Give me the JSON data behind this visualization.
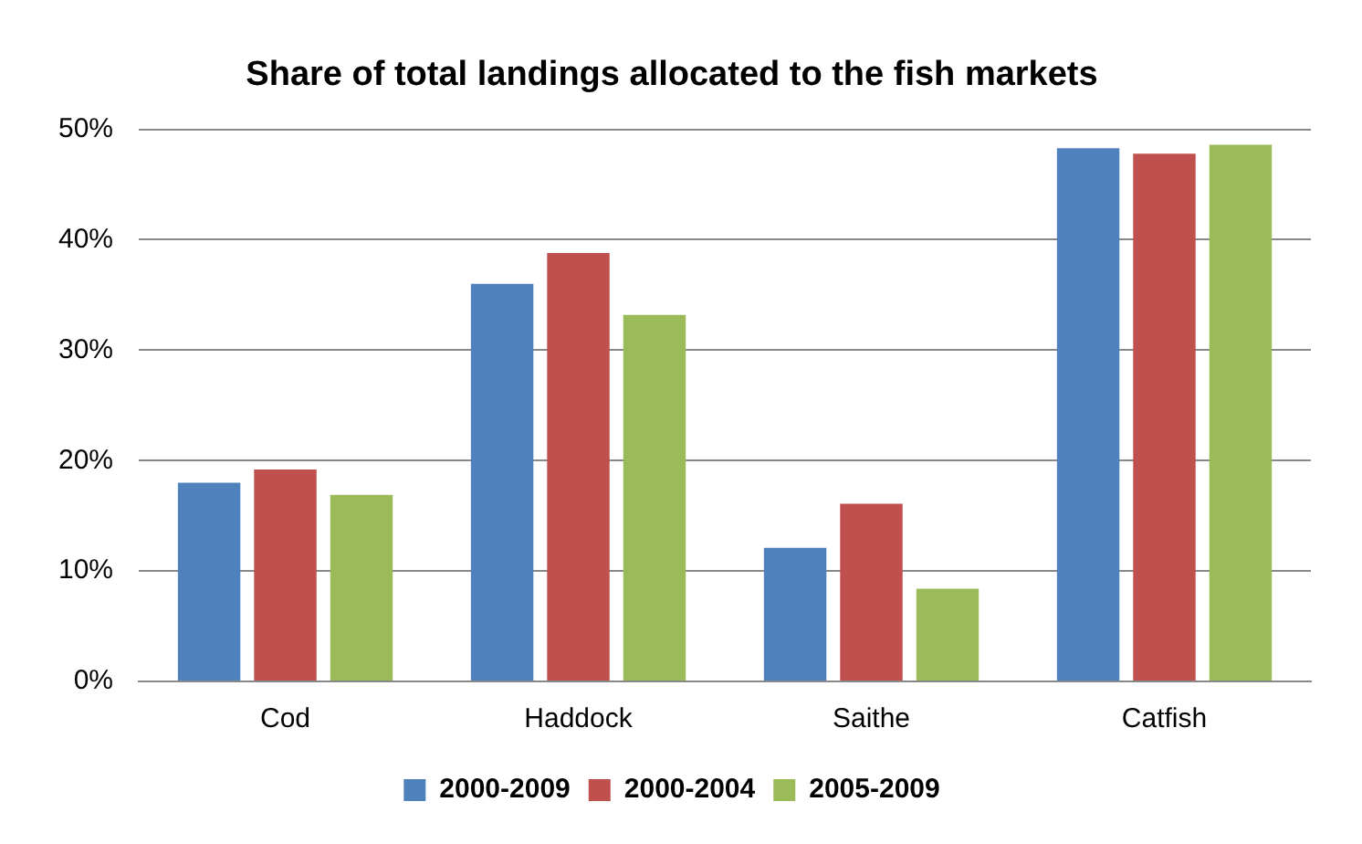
{
  "chart_data": {
    "type": "bar",
    "title": "Share of total landings allocated to the fish markets",
    "categories": [
      "Cod",
      "Haddock",
      "Saithe",
      "Catfish"
    ],
    "series": [
      {
        "name": "2000-2009",
        "color": "#4f81bd",
        "values": [
          18.0,
          36.0,
          12.1,
          48.3
        ]
      },
      {
        "name": "2000-2004",
        "color": "#c0504d",
        "values": [
          19.2,
          38.8,
          16.1,
          47.8
        ]
      },
      {
        "name": "2005-2009",
        "color": "#9bbb59",
        "values": [
          16.9,
          33.2,
          8.4,
          48.6
        ]
      }
    ],
    "ylim": [
      0,
      50
    ],
    "yticks": [
      {
        "value": 0,
        "label": "0%"
      },
      {
        "value": 10,
        "label": "10%"
      },
      {
        "value": 20,
        "label": "20%"
      },
      {
        "value": 30,
        "label": "30%"
      },
      {
        "value": 40,
        "label": "40%"
      },
      {
        "value": 50,
        "label": "50%"
      }
    ],
    "grid": "y",
    "legend": "bottom"
  }
}
